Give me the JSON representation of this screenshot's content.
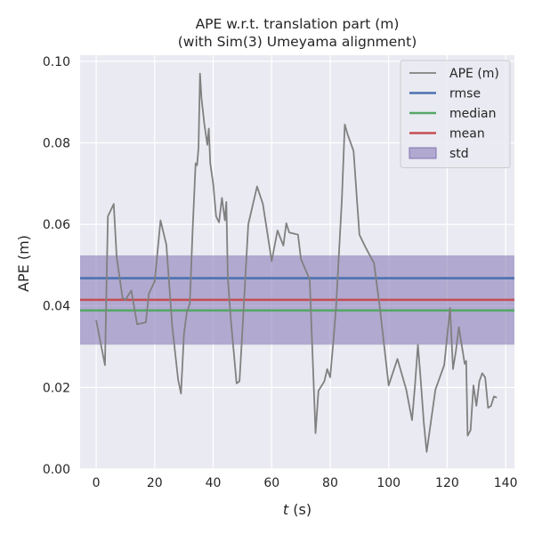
{
  "chart_data": {
    "type": "line",
    "title_line1": "APE w.r.t. translation part (m)",
    "title_line2": "(with Sim(3) Umeyama alignment)",
    "xlabel_var": "t",
    "xlabel_unit": " (s)",
    "ylabel": "APE (m)",
    "xlim": [
      -5.5,
      143
    ],
    "ylim": [
      0,
      0.1015
    ],
    "xticks": [
      0,
      20,
      40,
      60,
      80,
      100,
      120,
      140
    ],
    "yticks": [
      0.0,
      0.02,
      0.04,
      0.06,
      0.08,
      0.1
    ],
    "xtick_labels": [
      "0",
      "20",
      "40",
      "60",
      "80",
      "100",
      "120",
      "140"
    ],
    "ytick_labels": [
      "0.00",
      "0.02",
      "0.04",
      "0.06",
      "0.08",
      "0.10"
    ],
    "grid": true,
    "legend_position": "top-right",
    "legend": [
      {
        "label": "APE (m)",
        "kind": "line",
        "color": "#808080"
      },
      {
        "label": "rmse",
        "kind": "line",
        "color": "#4c72b0"
      },
      {
        "label": "median",
        "kind": "line",
        "color": "#55a868"
      },
      {
        "label": "mean",
        "kind": "line",
        "color": "#c44e52"
      },
      {
        "label": "std",
        "kind": "patch",
        "color": "#8172b3"
      }
    ],
    "stats": {
      "rmse": 0.0468,
      "median": 0.0389,
      "mean": 0.0415,
      "std_low": 0.0305,
      "std_high": 0.0524
    },
    "series": [
      {
        "name": "APE (m)",
        "x": [
          0,
          1.5,
          3,
          4,
          6,
          7,
          9,
          10,
          12,
          14,
          17,
          18,
          20,
          22,
          24,
          26,
          28,
          29,
          30,
          31,
          32,
          33,
          34,
          34.5,
          35,
          35.5,
          36,
          37,
          38,
          38.5,
          39,
          40,
          41,
          42,
          43,
          44,
          44.5,
          45,
          46,
          48,
          49,
          50,
          52,
          55,
          57,
          60,
          62,
          64,
          65,
          66,
          69,
          70,
          73,
          75,
          76,
          78,
          79,
          80,
          81,
          82,
          84,
          85,
          86,
          88,
          90,
          92,
          95,
          97,
          100,
          103,
          106,
          108,
          109,
          110,
          111,
          112,
          113,
          116,
          119,
          121,
          122,
          123,
          124,
          126,
          126.5,
          127,
          128,
          129,
          130,
          131,
          132,
          133,
          134,
          135,
          136,
          137
        ],
        "values": [
          0.0365,
          0.031,
          0.0255,
          0.062,
          0.065,
          0.052,
          0.042,
          0.0415,
          0.0438,
          0.0355,
          0.036,
          0.043,
          0.046,
          0.061,
          0.055,
          0.035,
          0.022,
          0.0185,
          0.033,
          0.0385,
          0.0405,
          0.059,
          0.075,
          0.0745,
          0.079,
          0.097,
          0.091,
          0.0845,
          0.0795,
          0.0835,
          0.075,
          0.07,
          0.062,
          0.0605,
          0.0665,
          0.061,
          0.0655,
          0.047,
          0.037,
          0.021,
          0.0215,
          0.034,
          0.06,
          0.0693,
          0.065,
          0.051,
          0.0585,
          0.0548,
          0.0603,
          0.058,
          0.0575,
          0.0515,
          0.0465,
          0.0088,
          0.0192,
          0.0215,
          0.0245,
          0.0225,
          0.0305,
          0.0395,
          0.066,
          0.0845,
          0.082,
          0.078,
          0.0575,
          0.0545,
          0.0505,
          0.0395,
          0.0205,
          0.027,
          0.0195,
          0.012,
          0.0205,
          0.0305,
          0.0215,
          0.0115,
          0.0042,
          0.0195,
          0.0255,
          0.0395,
          0.0245,
          0.029,
          0.0348,
          0.0258,
          0.0265,
          0.0082,
          0.0095,
          0.0205,
          0.0155,
          0.0215,
          0.0235,
          0.0225,
          0.015,
          0.0155,
          0.0178,
          0.0175
        ]
      }
    ]
  }
}
